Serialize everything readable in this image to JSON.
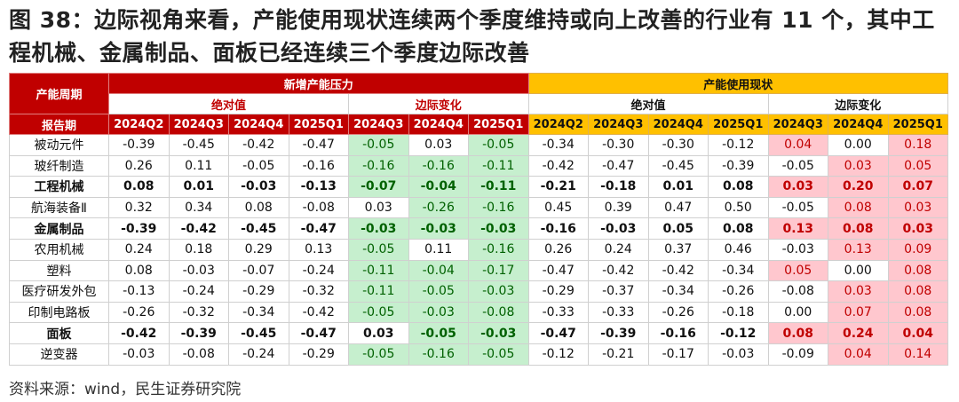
{
  "title": "图 38：边际视角来看，产能使用现状连续两个季度维持或向上改善的行业有 11 个，其中工程机械、金属制品、面板已经连续三个季度边际改善",
  "table": {
    "corner": "产能周期",
    "period_label": "报告期",
    "groups": [
      {
        "label": "新增产能压力",
        "color": "#c00000",
        "subgroups": [
          {
            "label": "绝对值",
            "periods": [
              "2024Q2",
              "2024Q3",
              "2024Q4",
              "2025Q1"
            ]
          },
          {
            "label": "边际变化",
            "periods": [
              "2024Q3",
              "2024Q4",
              "2025Q1"
            ],
            "highlight": {
              "when": "negative",
              "fill": "#c6efce",
              "text": "#006100"
            }
          }
        ]
      },
      {
        "label": "产能使用现状",
        "color": "#ffc000",
        "subgroups": [
          {
            "label": "绝对值",
            "periods": [
              "2024Q2",
              "2024Q3",
              "2024Q4",
              "2025Q1"
            ]
          },
          {
            "label": "边际变化",
            "periods": [
              "2024Q3",
              "2024Q4",
              "2025Q1"
            ],
            "highlight": {
              "when": "positive",
              "fill": "#ffc7ce",
              "text": "#c00000"
            }
          }
        ]
      }
    ],
    "rows": [
      {
        "name": "被动元件",
        "bold": false,
        "cells": [
          "-0.39",
          "-0.45",
          "-0.42",
          "-0.47",
          "-0.05",
          "0.03",
          "-0.05",
          "-0.34",
          "-0.30",
          "-0.30",
          "-0.12",
          "0.04",
          "0.00",
          "0.18"
        ]
      },
      {
        "name": "玻纤制造",
        "bold": false,
        "cells": [
          "0.26",
          "0.11",
          "-0.05",
          "-0.16",
          "-0.16",
          "-0.16",
          "-0.11",
          "-0.42",
          "-0.47",
          "-0.45",
          "-0.39",
          "-0.05",
          "0.03",
          "0.05"
        ]
      },
      {
        "name": "工程机械",
        "bold": true,
        "cells": [
          "0.08",
          "0.01",
          "-0.03",
          "-0.13",
          "-0.07",
          "-0.04",
          "-0.11",
          "-0.21",
          "-0.18",
          "0.01",
          "0.08",
          "0.03",
          "0.20",
          "0.07"
        ]
      },
      {
        "name": "航海装备Ⅱ",
        "bold": false,
        "cells": [
          "0.32",
          "0.34",
          "0.08",
          "-0.08",
          "0.03",
          "-0.26",
          "-0.16",
          "0.45",
          "0.39",
          "0.47",
          "0.50",
          "-0.05",
          "0.08",
          "0.03"
        ]
      },
      {
        "name": "金属制品",
        "bold": true,
        "cells": [
          "-0.39",
          "-0.42",
          "-0.45",
          "-0.47",
          "-0.03",
          "-0.03",
          "-0.03",
          "-0.16",
          "-0.03",
          "0.05",
          "0.08",
          "0.13",
          "0.08",
          "0.03"
        ]
      },
      {
        "name": "农用机械",
        "bold": false,
        "cells": [
          "0.24",
          "0.18",
          "0.29",
          "0.13",
          "-0.05",
          "0.11",
          "-0.16",
          "0.26",
          "0.24",
          "0.37",
          "0.46",
          "-0.03",
          "0.13",
          "0.09"
        ]
      },
      {
        "name": "塑料",
        "bold": false,
        "cells": [
          "0.08",
          "-0.03",
          "-0.07",
          "-0.24",
          "-0.11",
          "-0.04",
          "-0.17",
          "-0.47",
          "-0.42",
          "-0.42",
          "-0.34",
          "0.05",
          "0.00",
          "0.08"
        ]
      },
      {
        "name": "医疗研发外包",
        "bold": false,
        "cells": [
          "-0.13",
          "-0.24",
          "-0.29",
          "-0.32",
          "-0.11",
          "-0.05",
          "-0.03",
          "-0.29",
          "-0.37",
          "-0.34",
          "-0.26",
          "-0.08",
          "0.03",
          "0.08"
        ]
      },
      {
        "name": "印制电路板",
        "bold": false,
        "cells": [
          "-0.26",
          "-0.32",
          "-0.34",
          "-0.42",
          "-0.05",
          "-0.03",
          "-0.08",
          "-0.33",
          "-0.33",
          "-0.26",
          "-0.18",
          "0.00",
          "0.07",
          "0.08"
        ]
      },
      {
        "name": "面板",
        "bold": true,
        "cells": [
          "-0.42",
          "-0.39",
          "-0.45",
          "-0.47",
          "0.03",
          "-0.05",
          "-0.03",
          "-0.47",
          "-0.39",
          "-0.16",
          "-0.12",
          "0.08",
          "0.24",
          "0.04"
        ]
      },
      {
        "name": "逆变器",
        "bold": false,
        "cells": [
          "-0.03",
          "-0.08",
          "-0.24",
          "-0.29",
          "-0.05",
          "-0.16",
          "-0.05",
          "-0.12",
          "-0.21",
          "-0.17",
          "-0.03",
          "-0.09",
          "0.04",
          "0.14"
        ]
      }
    ]
  },
  "source": "资料来源：wind，民生证券研究院"
}
